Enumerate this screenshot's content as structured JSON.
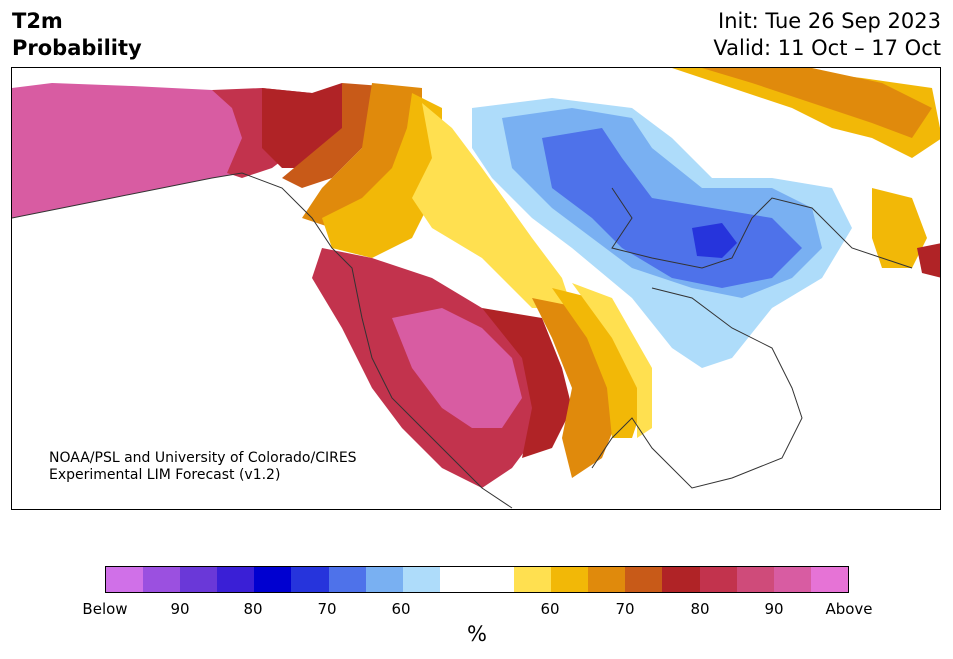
{
  "header": {
    "title_line1": "T2m",
    "title_line2": "Probability",
    "init": "Init: Tue 26 Sep 2023",
    "valid": "Valid: 11 Oct – 17 Oct"
  },
  "map": {
    "credit_line1": "NOAA/PSL and University of Colorado/CIRES",
    "credit_line2": "Experimental LIM Forecast (v1.2)"
  },
  "colorbar": {
    "unit": "%",
    "colors": [
      "#d070e8",
      "#9b50e0",
      "#6a38d8",
      "#3a1fd6",
      "#0000d0",
      "#2634dc",
      "#4e72ea",
      "#79b0f2",
      "#aedcfa",
      "#ffffff",
      "#ffffff",
      "#ffe050",
      "#f2b807",
      "#e08a0c",
      "#c85a18",
      "#b02326",
      "#c2334d",
      "#cf4b7a",
      "#d85ca2",
      "#e673d6"
    ],
    "ticks": [
      {
        "label": "Below"
      },
      {
        "label": "90"
      },
      {
        "label": "80"
      },
      {
        "label": "70"
      },
      {
        "label": "60"
      },
      {
        "label": "60"
      },
      {
        "label": "70"
      },
      {
        "label": "80"
      },
      {
        "label": "90"
      },
      {
        "label": "Above"
      }
    ]
  },
  "palette": {
    "above_90": "#d85ca2",
    "above_80": "#c2334d",
    "above_70": "#b02326",
    "above_65": "#c85a18",
    "above_60": "#e08a0c",
    "above_55": "#f2b807",
    "above_50": "#ffe050",
    "neutral": "#ffffff",
    "below_50": "#aedcfa",
    "below_60": "#79b0f2",
    "below_70": "#4e72ea",
    "below_80": "#2634dc"
  }
}
